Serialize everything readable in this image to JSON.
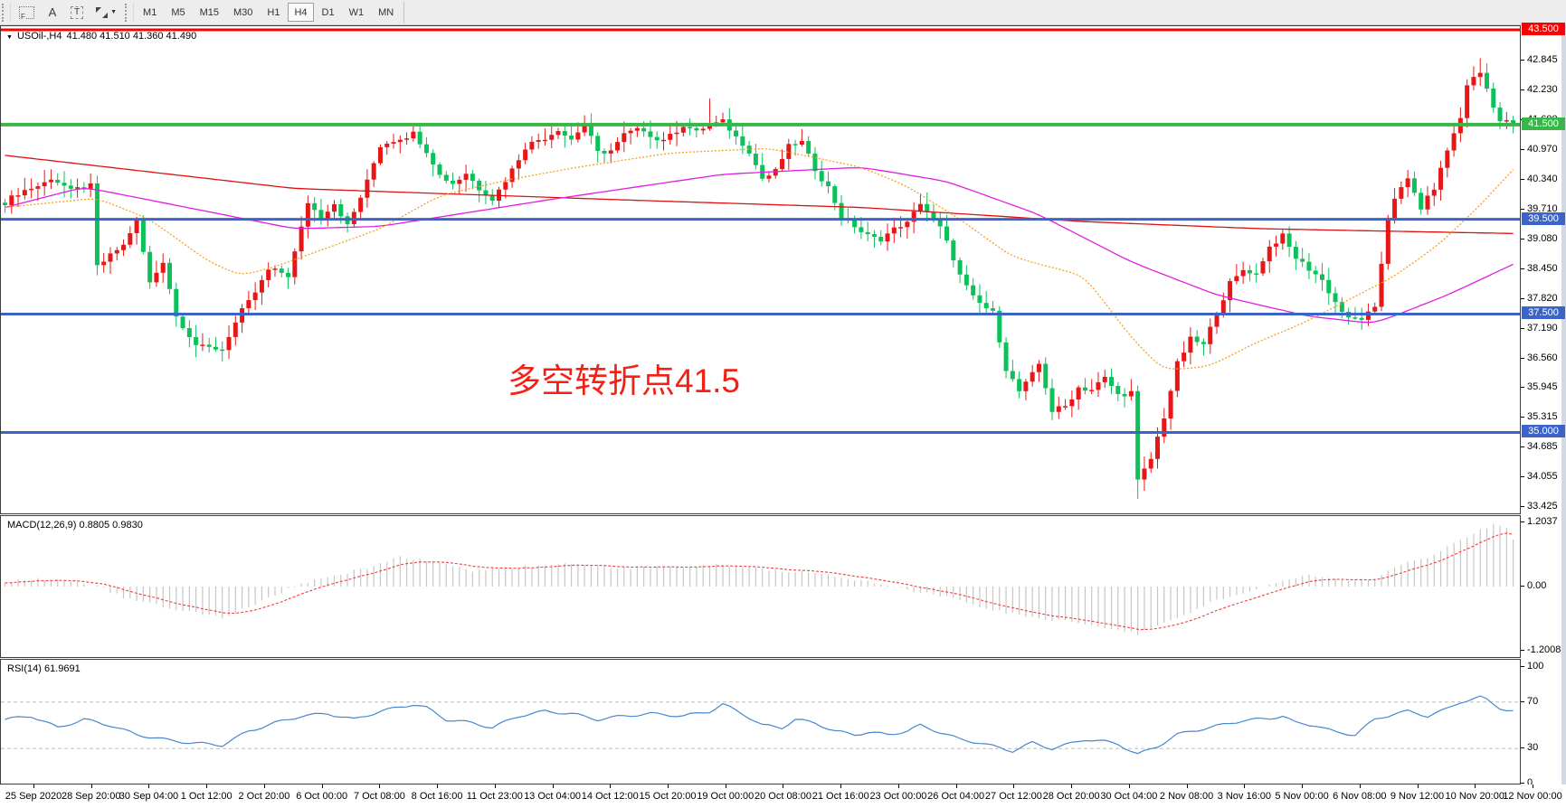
{
  "toolbar": {
    "icons": [
      {
        "name": "chart-shift-icon",
        "label": "F"
      },
      {
        "name": "text-label-icon",
        "label": "A"
      },
      {
        "name": "text-box-icon",
        "label": "T"
      },
      {
        "name": "cursor-tools-caret",
        "label": "▼"
      }
    ],
    "timeframes": [
      {
        "label": "M1",
        "active": false
      },
      {
        "label": "M5",
        "active": false
      },
      {
        "label": "M15",
        "active": false
      },
      {
        "label": "M30",
        "active": false
      },
      {
        "label": "H1",
        "active": false
      },
      {
        "label": "H4",
        "active": true
      },
      {
        "label": "D1",
        "active": false
      },
      {
        "label": "W1",
        "active": false
      },
      {
        "label": "MN",
        "active": false
      }
    ]
  },
  "main_chart": {
    "title": {
      "marker": "▼",
      "symbol_timeframe": "USOil-,H4",
      "ohlc": "41.480 41.510 41.360 41.490"
    },
    "annotation": {
      "text": "多空转折点41.5",
      "color": "#f42015"
    },
    "levels": [
      {
        "label": "43.500",
        "price": 43.5,
        "color": "#fb0000",
        "width": 3
      },
      {
        "label": "41.500",
        "price": 41.5,
        "color": "#3ab54a",
        "width": 4
      },
      {
        "label": "39.500",
        "price": 39.5,
        "color": "#3c64c8",
        "width": 3
      },
      {
        "label": "37.500",
        "price": 37.5,
        "color": "#3c64c8",
        "width": 3
      },
      {
        "label": "35.000",
        "price": 35.0,
        "color": "#3c64c8",
        "width": 3
      }
    ],
    "price_ticks": [
      "42.845",
      "42.230",
      "41.600",
      "40.970",
      "40.340",
      "39.710",
      "39.080",
      "38.450",
      "37.820",
      "37.190",
      "36.560",
      "35.945",
      "35.315",
      "34.685",
      "34.055",
      "33.425"
    ],
    "colors": {
      "up_candle": "#e81717",
      "down_candle": "#0cc05a",
      "ma_slow": "#dd1111",
      "ma_mid": "#e01ee0",
      "ma_fast": "#f8a01e",
      "background": "#ffffff"
    }
  },
  "macd": {
    "label": "MACD(12,26,9) 0.8805 0.9830",
    "axis_ticks": [
      "1.2037",
      "0.00",
      "-1.2008"
    ],
    "colors": {
      "histogram": "#c6c6c6",
      "signal": "#ef3e3e"
    }
  },
  "rsi": {
    "label": "RSI(14) 61.9691",
    "axis_ticks": [
      "100",
      "70",
      "30",
      "0"
    ],
    "levels": [
      70,
      30
    ],
    "color": "#4688d0"
  },
  "time_axis": {
    "labels": [
      "25 Sep 2020",
      "28 Sep 20:00",
      "30 Sep 04:00",
      "1 Oct 12:00",
      "2 Oct 20:00",
      "6 Oct 00:00",
      "7 Oct 08:00",
      "8 Oct 16:00",
      "11 Oct 23:00",
      "13 Oct 04:00",
      "14 Oct 12:00",
      "15 Oct 20:00",
      "19 Oct 00:00",
      "20 Oct 08:00",
      "21 Oct 16:00",
      "23 Oct 00:00",
      "26 Oct 04:00",
      "27 Oct 12:00",
      "28 Oct 20:00",
      "30 Oct 04:00",
      "2 Nov 08:00",
      "3 Nov 16:00",
      "5 Nov 00:00",
      "6 Nov 08:00",
      "9 Nov 12:00",
      "10 Nov 20:00",
      "12 Nov 00:00"
    ]
  },
  "chart_data": {
    "type": "candlestick",
    "symbol": "USOil",
    "timeframe": "H4",
    "current_ohlc": {
      "open": 41.48,
      "high": 41.51,
      "low": 41.36,
      "close": 41.49
    },
    "price_axis": {
      "top_visible": 43.5,
      "bottom_visible": 33.425,
      "tick_step": 0.63
    },
    "horizontal_levels": [
      43.5,
      41.5,
      39.5,
      37.5,
      35.0
    ],
    "candle_count": 230,
    "close_waypoints": [
      [
        0,
        39.85
      ],
      [
        2,
        40.0
      ],
      [
        7,
        40.4
      ],
      [
        10,
        40.05
      ],
      [
        13,
        40.25
      ],
      [
        14,
        38.55
      ],
      [
        18,
        38.9
      ],
      [
        20,
        39.5
      ],
      [
        22,
        38.2
      ],
      [
        24,
        38.6
      ],
      [
        26,
        37.4
      ],
      [
        29,
        36.9
      ],
      [
        33,
        36.7
      ],
      [
        36,
        37.6
      ],
      [
        40,
        38.4
      ],
      [
        43,
        38.3
      ],
      [
        46,
        39.9
      ],
      [
        48,
        39.5
      ],
      [
        50,
        39.8
      ],
      [
        52,
        39.4
      ],
      [
        55,
        40.3
      ],
      [
        57,
        41.0
      ],
      [
        60,
        41.25
      ],
      [
        62,
        41.35
      ],
      [
        64,
        40.9
      ],
      [
        66,
        40.4
      ],
      [
        68,
        40.3
      ],
      [
        70,
        40.5
      ],
      [
        72,
        40.1
      ],
      [
        74,
        39.9
      ],
      [
        77,
        40.6
      ],
      [
        79,
        41.0
      ],
      [
        82,
        41.2
      ],
      [
        84,
        41.45
      ],
      [
        86,
        41.2
      ],
      [
        88,
        41.45
      ],
      [
        90,
        40.9
      ],
      [
        92,
        41.0
      ],
      [
        94,
        41.3
      ],
      [
        97,
        41.35
      ],
      [
        99,
        41.2
      ],
      [
        101,
        41.3
      ],
      [
        103,
        41.45
      ],
      [
        105,
        41.3
      ],
      [
        107,
        41.55
      ],
      [
        109,
        41.6
      ],
      [
        111,
        41.2
      ],
      [
        113,
        40.9
      ],
      [
        115,
        40.4
      ],
      [
        117,
        40.55
      ],
      [
        119,
        41.0
      ],
      [
        121,
        41.1
      ],
      [
        123,
        40.6
      ],
      [
        125,
        40.2
      ],
      [
        127,
        39.5
      ],
      [
        130,
        39.25
      ],
      [
        133,
        39.1
      ],
      [
        137,
        39.4
      ],
      [
        139,
        39.9
      ],
      [
        142,
        39.3
      ],
      [
        145,
        38.3
      ],
      [
        147,
        37.9
      ],
      [
        150,
        37.5
      ],
      [
        152,
        36.3
      ],
      [
        154,
        35.9
      ],
      [
        157,
        36.45
      ],
      [
        159,
        35.4
      ],
      [
        161,
        35.55
      ],
      [
        163,
        36.0
      ],
      [
        165,
        35.9
      ],
      [
        167,
        36.1
      ],
      [
        169,
        35.8
      ],
      [
        171,
        35.9
      ],
      [
        172,
        34.0
      ],
      [
        174,
        34.4
      ],
      [
        176,
        35.3
      ],
      [
        178,
        36.5
      ],
      [
        180,
        37.0
      ],
      [
        182,
        36.8
      ],
      [
        184,
        37.5
      ],
      [
        186,
        38.2
      ],
      [
        188,
        38.45
      ],
      [
        190,
        38.3
      ],
      [
        192,
        38.9
      ],
      [
        194,
        39.2
      ],
      [
        196,
        38.7
      ],
      [
        198,
        38.4
      ],
      [
        200,
        38.2
      ],
      [
        202,
        37.8
      ],
      [
        204,
        37.4
      ],
      [
        206,
        37.35
      ],
      [
        208,
        37.6
      ],
      [
        210,
        39.6
      ],
      [
        211,
        40.0
      ],
      [
        213,
        40.3
      ],
      [
        215,
        39.7
      ],
      [
        217,
        40.2
      ],
      [
        219,
        41.0
      ],
      [
        221,
        41.6
      ],
      [
        222,
        42.3
      ],
      [
        224,
        42.6
      ],
      [
        225,
        42.3
      ],
      [
        227,
        41.6
      ],
      [
        228,
        41.55
      ],
      [
        229,
        41.49
      ]
    ],
    "spike_wicks": [
      [
        33,
        36.5
      ],
      [
        107,
        42.05
      ],
      [
        172,
        33.6
      ],
      [
        224,
        42.9
      ]
    ],
    "ma_lines": [
      {
        "name": "ma-slow-red",
        "color_key": "ma_slow",
        "waypoints": [
          [
            0,
            40.85
          ],
          [
            44,
            40.15
          ],
          [
            96,
            39.9
          ],
          [
            130,
            39.75
          ],
          [
            164,
            39.45
          ],
          [
            191,
            39.3
          ],
          [
            229,
            39.2
          ]
        ]
      },
      {
        "name": "ma-mid-magenta",
        "color_key": "ma_mid",
        "waypoints": [
          [
            0,
            39.75
          ],
          [
            12,
            40.18
          ],
          [
            44,
            39.3
          ],
          [
            57,
            39.35
          ],
          [
            82,
            39.9
          ],
          [
            109,
            40.45
          ],
          [
            130,
            40.6
          ],
          [
            143,
            40.3
          ],
          [
            157,
            39.6
          ],
          [
            171,
            38.6
          ],
          [
            184,
            37.9
          ],
          [
            198,
            37.45
          ],
          [
            208,
            37.3
          ],
          [
            219,
            37.9
          ],
          [
            229,
            38.55
          ]
        ]
      },
      {
        "name": "ma-fast-orange",
        "color_key": "ma_fast",
        "waypoints": [
          [
            0,
            39.75
          ],
          [
            14,
            39.95
          ],
          [
            22,
            39.5
          ],
          [
            31,
            38.6
          ],
          [
            36,
            38.3
          ],
          [
            41,
            38.5
          ],
          [
            49,
            38.9
          ],
          [
            57,
            39.3
          ],
          [
            66,
            40.0
          ],
          [
            77,
            40.35
          ],
          [
            87,
            40.6
          ],
          [
            101,
            40.9
          ],
          [
            116,
            41.0
          ],
          [
            130,
            40.6
          ],
          [
            137,
            40.2
          ],
          [
            145,
            39.5
          ],
          [
            153,
            38.7
          ],
          [
            164,
            38.3
          ],
          [
            171,
            37.0
          ],
          [
            176,
            36.3
          ],
          [
            183,
            36.4
          ],
          [
            190,
            36.9
          ],
          [
            197,
            37.3
          ],
          [
            204,
            37.8
          ],
          [
            211,
            38.3
          ],
          [
            218,
            39.0
          ],
          [
            224,
            39.8
          ],
          [
            229,
            40.55
          ]
        ]
      }
    ],
    "macd_series": {
      "axis_top": 1.2037,
      "axis_zero": 0.0,
      "axis_bottom": -1.2008,
      "last_main": 0.8805,
      "last_signal": 0.983,
      "waypoints": [
        [
          0,
          0.1
        ],
        [
          8,
          0.15
        ],
        [
          14,
          0.0
        ],
        [
          18,
          -0.2
        ],
        [
          25,
          -0.4
        ],
        [
          33,
          -0.6
        ],
        [
          41,
          -0.15
        ],
        [
          46,
          0.1
        ],
        [
          55,
          0.35
        ],
        [
          60,
          0.55
        ],
        [
          66,
          0.45
        ],
        [
          71,
          0.3
        ],
        [
          77,
          0.35
        ],
        [
          85,
          0.42
        ],
        [
          93,
          0.35
        ],
        [
          101,
          0.36
        ],
        [
          109,
          0.42
        ],
        [
          116,
          0.3
        ],
        [
          123,
          0.26
        ],
        [
          130,
          0.1
        ],
        [
          137,
          -0.05
        ],
        [
          143,
          -0.2
        ],
        [
          150,
          -0.45
        ],
        [
          157,
          -0.6
        ],
        [
          164,
          -0.7
        ],
        [
          172,
          -0.88
        ],
        [
          178,
          -0.6
        ],
        [
          183,
          -0.3
        ],
        [
          189,
          -0.1
        ],
        [
          194,
          0.1
        ],
        [
          198,
          0.22
        ],
        [
          202,
          0.15
        ],
        [
          207,
          0.1
        ],
        [
          210,
          0.3
        ],
        [
          213,
          0.45
        ],
        [
          217,
          0.6
        ],
        [
          220,
          0.8
        ],
        [
          223,
          1.0
        ],
        [
          226,
          1.15
        ],
        [
          228,
          1.1
        ],
        [
          229,
          0.88
        ]
      ]
    },
    "rsi_series": {
      "last": 61.9691,
      "overbought": 70,
      "oversold": 30,
      "waypoints": [
        [
          0,
          55
        ],
        [
          4,
          58
        ],
        [
          8,
          48
        ],
        [
          12,
          55
        ],
        [
          16,
          50
        ],
        [
          20,
          42
        ],
        [
          24,
          38
        ],
        [
          28,
          35
        ],
        [
          33,
          33
        ],
        [
          37,
          45
        ],
        [
          41,
          52
        ],
        [
          45,
          58
        ],
        [
          49,
          60
        ],
        [
          53,
          55
        ],
        [
          57,
          62
        ],
        [
          62,
          68
        ],
        [
          64,
          65
        ],
        [
          67,
          55
        ],
        [
          71,
          52
        ],
        [
          74,
          48
        ],
        [
          78,
          58
        ],
        [
          82,
          62
        ],
        [
          86,
          60
        ],
        [
          90,
          55
        ],
        [
          94,
          58
        ],
        [
          98,
          60
        ],
        [
          103,
          58
        ],
        [
          107,
          62
        ],
        [
          109,
          68
        ],
        [
          112,
          60
        ],
        [
          115,
          50
        ],
        [
          118,
          48
        ],
        [
          120,
          55
        ],
        [
          123,
          52
        ],
        [
          126,
          45
        ],
        [
          129,
          42
        ],
        [
          131,
          44
        ],
        [
          134,
          42
        ],
        [
          137,
          45
        ],
        [
          139,
          50
        ],
        [
          142,
          44
        ],
        [
          145,
          38
        ],
        [
          148,
          35
        ],
        [
          150,
          32
        ],
        [
          153,
          28
        ],
        [
          156,
          35
        ],
        [
          159,
          30
        ],
        [
          161,
          33
        ],
        [
          164,
          38
        ],
        [
          167,
          36
        ],
        [
          169,
          34
        ],
        [
          172,
          25
        ],
        [
          175,
          32
        ],
        [
          178,
          42
        ],
        [
          180,
          45
        ],
        [
          183,
          48
        ],
        [
          186,
          52
        ],
        [
          188,
          54
        ],
        [
          192,
          56
        ],
        [
          194,
          58
        ],
        [
          196,
          52
        ],
        [
          199,
          50
        ],
        [
          202,
          44
        ],
        [
          205,
          42
        ],
        [
          208,
          55
        ],
        [
          211,
          60
        ],
        [
          213,
          62
        ],
        [
          216,
          58
        ],
        [
          219,
          64
        ],
        [
          221,
          70
        ],
        [
          224,
          74
        ],
        [
          225,
          72
        ],
        [
          227,
          65
        ],
        [
          228,
          63
        ],
        [
          229,
          62
        ]
      ]
    }
  }
}
